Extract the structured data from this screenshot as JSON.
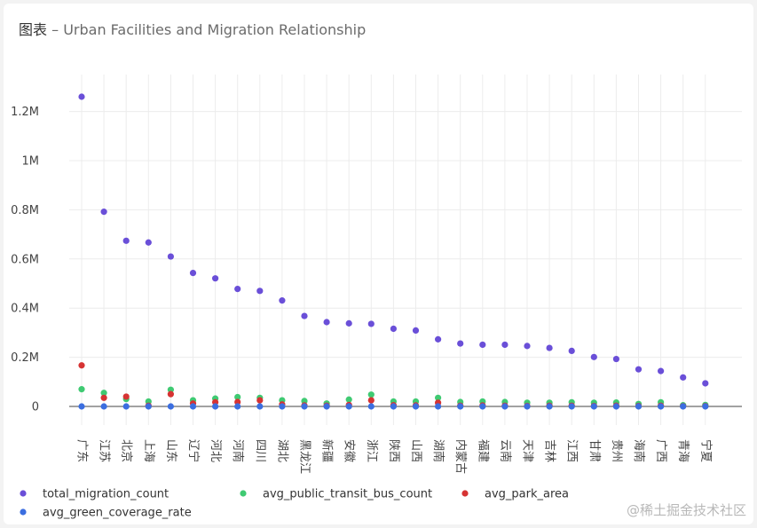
{
  "header": {
    "prefix": "图表",
    "separator": " – ",
    "title": "Urban Facilities and Migration Relationship"
  },
  "watermark": "@稀土掘金技术社区",
  "chart_data": {
    "type": "scatter",
    "title": "Urban Facilities and Migration Relationship",
    "xlabel": "",
    "ylabel": "",
    "ylim": [
      -20000,
      1350000
    ],
    "yticks": [
      {
        "value": 0,
        "label": "0"
      },
      {
        "value": 200000,
        "label": "0.2M"
      },
      {
        "value": 400000,
        "label": "0.4M"
      },
      {
        "value": 600000,
        "label": "0.6M"
      },
      {
        "value": 800000,
        "label": "0.8M"
      },
      {
        "value": 1000000,
        "label": "1M"
      },
      {
        "value": 1200000,
        "label": "1.2M"
      }
    ],
    "grid": true,
    "legend_position": "bottom",
    "categories": [
      "广东",
      "江苏",
      "北京",
      "上海",
      "山东",
      "辽宁",
      "河北",
      "河南",
      "四川",
      "湖北",
      "黑龙江",
      "新疆",
      "安徽",
      "浙江",
      "陕西",
      "山西",
      "湖南",
      "内蒙古",
      "福建",
      "云南",
      "天津",
      "吉林",
      "江西",
      "甘肃",
      "贵州",
      "海南",
      "广西",
      "青海",
      "宁夏"
    ],
    "series": [
      {
        "name": "total_migration_count",
        "color": "#6a4fd8",
        "values": [
          1260000,
          792000,
          674000,
          667000,
          610000,
          543000,
          521000,
          478000,
          470000,
          431000,
          368000,
          343000,
          338000,
          336000,
          316000,
          309000,
          273000,
          256000,
          251000,
          251000,
          246000,
          238000,
          226000,
          201000,
          193000,
          151000,
          144000,
          118000,
          94000
        ]
      },
      {
        "name": "avg_public_transit_bus_count",
        "color": "#3fca72",
        "values": [
          70000,
          55000,
          30000,
          20000,
          68000,
          25000,
          32000,
          38000,
          35000,
          25000,
          22000,
          12000,
          28000,
          48000,
          20000,
          20000,
          35000,
          18000,
          20000,
          18000,
          15000,
          15000,
          17000,
          15000,
          16000,
          10000,
          17000,
          5000,
          6000
        ]
      },
      {
        "name": "avg_park_area",
        "color": "#d63333",
        "values": [
          167000,
          35000,
          40000,
          3000,
          50000,
          12000,
          17000,
          18000,
          25000,
          8000,
          4000,
          3000,
          6000,
          25000,
          5000,
          4000,
          15000,
          3000,
          4000,
          3000,
          2000,
          3000,
          3000,
          2000,
          3000,
          2000,
          3000,
          1000,
          1500
        ]
      },
      {
        "name": "avg_green_coverage_rate",
        "color": "#3b6ee0",
        "values": [
          40,
          40,
          40,
          40,
          40,
          40,
          40,
          40,
          40,
          40,
          40,
          40,
          40,
          40,
          40,
          40,
          40,
          40,
          40,
          40,
          40,
          40,
          40,
          40,
          40,
          40,
          40,
          40,
          40
        ]
      }
    ]
  }
}
